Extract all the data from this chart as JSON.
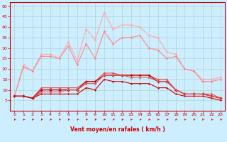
{
  "x": [
    0,
    1,
    2,
    3,
    4,
    5,
    6,
    7,
    8,
    9,
    10,
    11,
    12,
    13,
    14,
    15,
    16,
    17,
    18,
    19,
    20,
    21,
    22,
    23
  ],
  "background_color": "#cceeff",
  "grid_color": "#aacccc",
  "xlabel": "Vent moyen/en rafales ( km/h )",
  "xlabel_color": "#cc0000",
  "tick_color": "#cc0000",
  "line_color_bright1": "#ffaaaa",
  "line_color_bright2": "#ff8888",
  "line_color_mid": "#dd5555",
  "line_color_dark": "#cc0000",
  "ylim": [
    0,
    52
  ],
  "xlim": [
    -0.5,
    23.5
  ],
  "yticks": [
    5,
    10,
    15,
    20,
    25,
    30,
    35,
    40,
    45,
    50
  ],
  "xticks": [
    0,
    1,
    2,
    3,
    4,
    5,
    6,
    7,
    8,
    9,
    10,
    11,
    12,
    13,
    14,
    15,
    16,
    17,
    18,
    19,
    20,
    21,
    22,
    23
  ],
  "series": {
    "max_gust": [
      7,
      22,
      19,
      27,
      27,
      25,
      33,
      24,
      39,
      34,
      47,
      39,
      41,
      41,
      40,
      36,
      35,
      28,
      27,
      20,
      19,
      15,
      15,
      16
    ],
    "avg_gust": [
      7,
      21,
      19,
      26,
      26,
      25,
      31,
      22,
      32,
      25,
      38,
      32,
      35,
      35,
      36,
      30,
      29,
      25,
      26,
      20,
      19,
      14,
      14,
      15
    ],
    "max_wind": [
      7,
      7,
      6,
      11,
      11,
      11,
      11,
      11,
      14,
      14,
      18,
      18,
      17,
      17,
      17,
      17,
      15,
      15,
      10,
      8,
      8,
      8,
      8,
      6
    ],
    "avg_wind": [
      7,
      7,
      6,
      10,
      10,
      10,
      10,
      10,
      14,
      14,
      17,
      17,
      17,
      17,
      17,
      17,
      14,
      14,
      10,
      8,
      8,
      8,
      7,
      6
    ],
    "min_wind": [
      7,
      7,
      6,
      8,
      8,
      8,
      8,
      8,
      11,
      10,
      15,
      14,
      14,
      13,
      13,
      13,
      11,
      11,
      8,
      7,
      7,
      7,
      6,
      5
    ],
    "median_wind": [
      7,
      7,
      6,
      9,
      9,
      9,
      10,
      10,
      13,
      13,
      17,
      17,
      17,
      16,
      16,
      16,
      14,
      14,
      10,
      8,
      8,
      8,
      7,
      6
    ]
  },
  "arrow_color": "#cc0000",
  "spine_color": "#cc0000"
}
